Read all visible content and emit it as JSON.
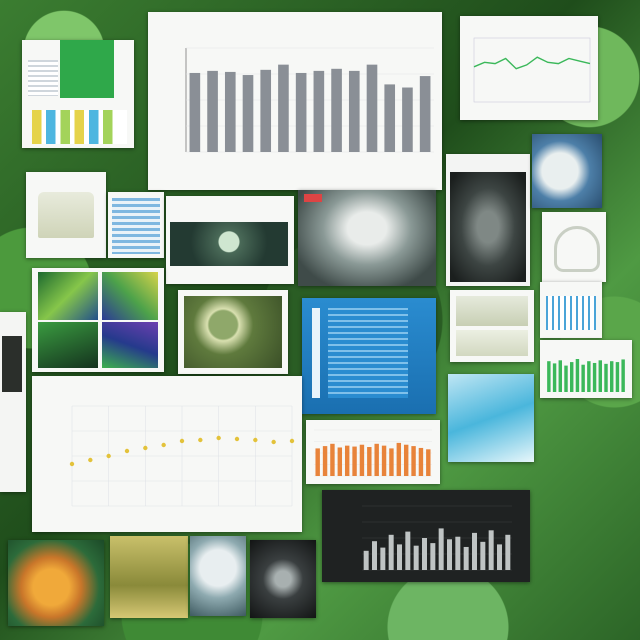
{
  "main_chart": {
    "title_lines": [
      "",
      ""
    ],
    "xlabel": "",
    "chart_data": {
      "type": "bar",
      "categories": [
        "",
        "",
        "",
        "",
        "",
        "",
        "",
        "",
        "",
        "",
        "",
        "",
        "",
        ""
      ],
      "values": [
        76,
        78,
        77,
        74,
        79,
        84,
        76,
        78,
        80,
        78,
        84,
        65,
        62,
        73
      ],
      "ylim": [
        0,
        100
      ],
      "grid": true,
      "title": "",
      "xlabel": "",
      "ylabel": ""
    }
  },
  "line_chart_small": {
    "chart_data": {
      "type": "line",
      "x": [
        1,
        2,
        3,
        4,
        5,
        6,
        7,
        8,
        9,
        10,
        11,
        12
      ],
      "values": [
        55,
        62,
        60,
        68,
        52,
        58,
        70,
        62,
        60,
        68,
        64,
        60
      ],
      "ylim": [
        0,
        100
      ],
      "title": ""
    }
  },
  "scatter_chart": {
    "chart_data": {
      "type": "scatter",
      "x": [
        1,
        2,
        3,
        4,
        5,
        6,
        7,
        8,
        9,
        10,
        11,
        12,
        13
      ],
      "values": [
        42,
        46,
        50,
        55,
        58,
        61,
        65,
        66,
        68,
        67,
        66,
        64,
        65
      ],
      "ylim": [
        0,
        100
      ],
      "title": ""
    }
  },
  "orange_bar_chart": {
    "chart_data": {
      "type": "bar",
      "categories": [
        "",
        "",
        "",
        "",
        "",
        "",
        "",
        "",
        "",
        "",
        "",
        "",
        "",
        "",
        "",
        ""
      ],
      "values": [
        60,
        65,
        70,
        62,
        66,
        64,
        68,
        63,
        70,
        66,
        60,
        72,
        68,
        65,
        61,
        58
      ],
      "ylim": [
        0,
        100
      ],
      "title": ""
    }
  },
  "dark_bar_chart": {
    "chart_data": {
      "type": "bar",
      "categories": [
        "",
        "",
        "",
        "",
        "",
        "",
        "",
        "",
        "",
        "",
        "",
        "",
        "",
        "",
        "",
        "",
        "",
        ""
      ],
      "values": [
        30,
        45,
        35,
        55,
        40,
        60,
        38,
        50,
        42,
        65,
        48,
        52,
        36,
        58,
        44,
        62,
        40,
        55
      ],
      "ylim": [
        0,
        100
      ],
      "title": ""
    }
  },
  "green_bar_chart": {
    "chart_data": {
      "type": "bar",
      "categories": [
        "",
        "",
        "",
        "",
        "",
        "",
        "",
        "",
        "",
        "",
        "",
        "",
        "",
        ""
      ],
      "values": [
        70,
        65,
        72,
        60,
        68,
        75,
        62,
        70,
        66,
        72,
        64,
        70,
        68,
        74
      ],
      "ylim": [
        0,
        100
      ],
      "title": ""
    }
  },
  "colors": {
    "accent": "#1a8fd0",
    "bar_gray": "#8a8f96",
    "orange": "#e8833a",
    "green": "#3bb85a",
    "yellow": "#e3c23a"
  }
}
